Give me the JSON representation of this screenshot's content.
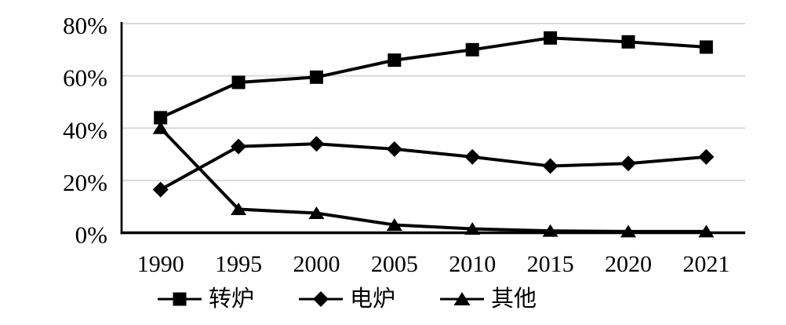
{
  "chart_data": {
    "type": "line",
    "title": "",
    "xlabel": "",
    "ylabel": "",
    "categories": [
      "1990",
      "1995",
      "2000",
      "2005",
      "2010",
      "2015",
      "2020",
      "2021"
    ],
    "series": [
      {
        "key": "converter",
        "name": "转炉",
        "marker": "square",
        "values": [
          44,
          57.5,
          59.5,
          66,
          70,
          74.5,
          73,
          71
        ]
      },
      {
        "key": "electric-furnace",
        "name": "电炉",
        "marker": "diamond",
        "values": [
          16.5,
          33,
          34,
          32,
          29,
          25.5,
          26.5,
          29
        ]
      },
      {
        "key": "other",
        "name": "其他",
        "marker": "triangle",
        "values": [
          40,
          9,
          7.5,
          3,
          1.5,
          0.7,
          0.5,
          0.5
        ]
      }
    ],
    "ylim": [
      0,
      80
    ],
    "y_ticks": [
      {
        "label": "0%",
        "value": 0
      },
      {
        "label": "20%",
        "value": 20
      },
      {
        "label": "40%",
        "value": 40
      },
      {
        "label": "60%",
        "value": 60
      },
      {
        "label": "80%",
        "value": 80
      }
    ],
    "grid": "horizontal",
    "legend_position": "bottom",
    "line_color": "#000000",
    "grid_color": "#d9d9d9",
    "axis_color": "#000000",
    "background": "#ffffff"
  }
}
